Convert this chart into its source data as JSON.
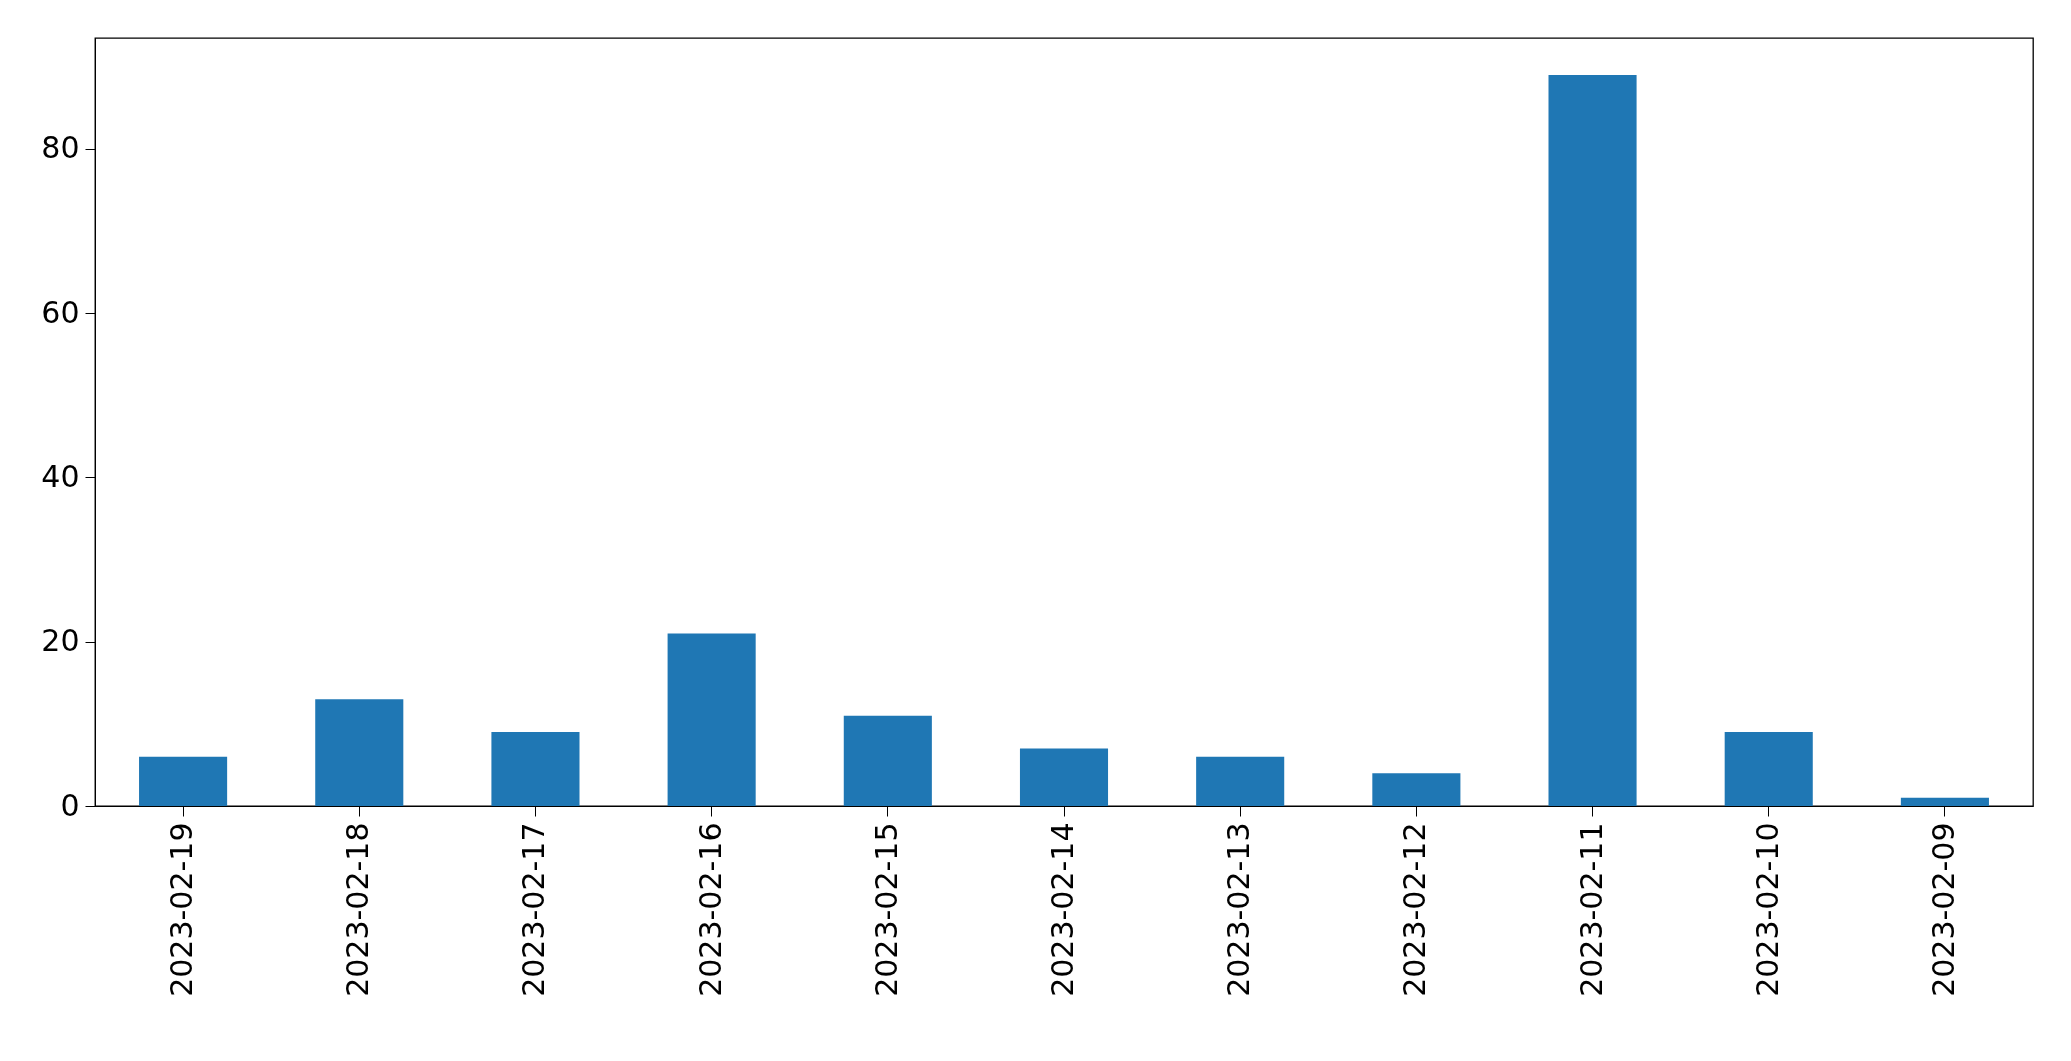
{
  "chart_data": {
    "type": "bar",
    "categories": [
      "2023-02-19",
      "2023-02-18",
      "2023-02-17",
      "2023-02-16",
      "2023-02-15",
      "2023-02-14",
      "2023-02-13",
      "2023-02-12",
      "2023-02-11",
      "2023-02-10",
      "2023-02-09"
    ],
    "values": [
      6,
      13,
      9,
      21,
      11,
      7,
      6,
      4,
      89,
      9,
      1
    ],
    "color": "#1f77b4",
    "ylim": [
      0,
      93.5
    ],
    "yticks": [
      0,
      20,
      40,
      60,
      80
    ],
    "grid": false
  }
}
